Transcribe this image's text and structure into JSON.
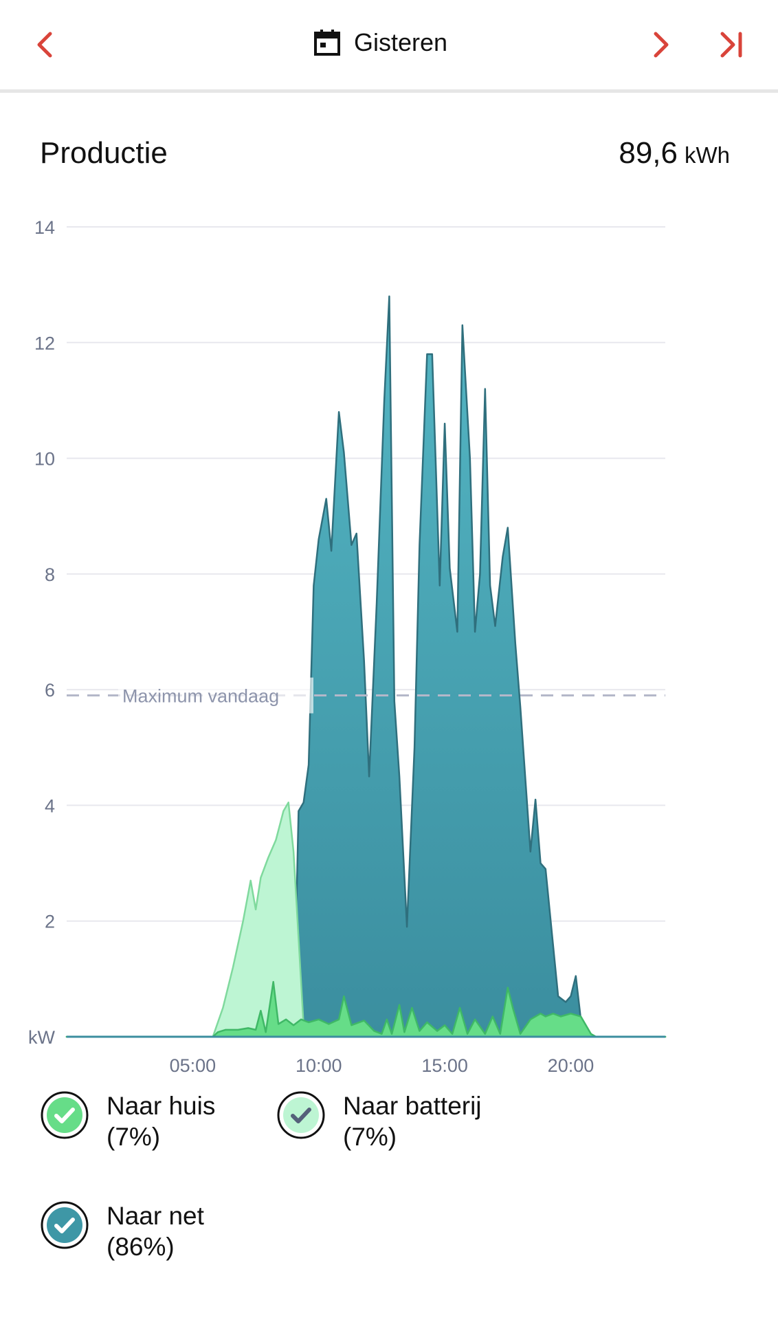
{
  "header": {
    "date_label": "Gisteren",
    "prev_icon": "chevron-left-icon",
    "next_icon": "chevron-right-icon",
    "last_icon": "skip-to-end-icon",
    "calendar_icon": "calendar-icon",
    "accent_color": "#d9443a"
  },
  "production": {
    "title": "Productie",
    "total_value": "89,6",
    "total_unit": "kWh"
  },
  "chart_data": {
    "type": "area",
    "unit_label": "kW",
    "y_ticks": [
      "14",
      "12",
      "10",
      "8",
      "6",
      "4",
      "2"
    ],
    "ylim": [
      0,
      14
    ],
    "x_ticks": [
      "05:00",
      "10:00",
      "15:00",
      "20:00"
    ],
    "x_tick_hours": [
      5,
      10,
      15,
      20
    ],
    "xlim": [
      0,
      23.75
    ],
    "grid": true,
    "reference_line": {
      "label": "Maximum vandaag",
      "value": 5.9
    },
    "series": [
      {
        "name": "Naar net",
        "color": "#3e97a6",
        "points": [
          [
            0,
            0
          ],
          [
            9.0,
            0
          ],
          [
            9.2,
            3.9
          ],
          [
            9.4,
            4.05
          ],
          [
            9.6,
            4.7
          ],
          [
            9.8,
            7.8
          ],
          [
            10.0,
            8.6
          ],
          [
            10.3,
            9.3
          ],
          [
            10.5,
            8.4
          ],
          [
            10.8,
            10.8
          ],
          [
            11.0,
            10.1
          ],
          [
            11.3,
            8.5
          ],
          [
            11.5,
            8.7
          ],
          [
            11.8,
            6.5
          ],
          [
            12.0,
            4.5
          ],
          [
            12.3,
            7.5
          ],
          [
            12.6,
            11.0
          ],
          [
            12.8,
            12.8
          ],
          [
            13.0,
            5.8
          ],
          [
            13.2,
            4.5
          ],
          [
            13.5,
            1.9
          ],
          [
            13.8,
            5.0
          ],
          [
            14.0,
            8.5
          ],
          [
            14.3,
            11.8
          ],
          [
            14.5,
            11.8
          ],
          [
            14.8,
            7.8
          ],
          [
            15.0,
            10.6
          ],
          [
            15.2,
            8.1
          ],
          [
            15.5,
            7.0
          ],
          [
            15.7,
            12.3
          ],
          [
            16.0,
            10.0
          ],
          [
            16.2,
            7.0
          ],
          [
            16.4,
            8.0
          ],
          [
            16.6,
            11.2
          ],
          [
            16.8,
            7.8
          ],
          [
            17.0,
            7.1
          ],
          [
            17.3,
            8.3
          ],
          [
            17.5,
            8.8
          ],
          [
            17.8,
            6.8
          ],
          [
            18.0,
            5.7
          ],
          [
            18.4,
            3.2
          ],
          [
            18.6,
            4.1
          ],
          [
            18.8,
            3.0
          ],
          [
            19.0,
            2.9
          ],
          [
            19.5,
            0.7
          ],
          [
            19.8,
            0.6
          ],
          [
            20.0,
            0.7
          ],
          [
            20.2,
            1.05
          ],
          [
            20.4,
            0.3
          ],
          [
            20.6,
            0
          ],
          [
            23.75,
            0
          ]
        ]
      },
      {
        "name": "Naar batterij",
        "color": "#bdf5d3",
        "points": [
          [
            0,
            0
          ],
          [
            5.8,
            0
          ],
          [
            6.2,
            0.5
          ],
          [
            6.6,
            1.2
          ],
          [
            7.0,
            2.0
          ],
          [
            7.3,
            2.7
          ],
          [
            7.5,
            2.2
          ],
          [
            7.7,
            2.75
          ],
          [
            8.0,
            3.1
          ],
          [
            8.3,
            3.4
          ],
          [
            8.6,
            3.9
          ],
          [
            8.8,
            4.05
          ],
          [
            9.0,
            3.2
          ],
          [
            9.4,
            0.2
          ],
          [
            9.6,
            0
          ],
          [
            23.75,
            0
          ]
        ]
      },
      {
        "name": "Naar huis",
        "color": "#66dd88",
        "points": [
          [
            0,
            0
          ],
          [
            5.8,
            0
          ],
          [
            6.0,
            0.08
          ],
          [
            6.3,
            0.12
          ],
          [
            6.8,
            0.12
          ],
          [
            7.2,
            0.15
          ],
          [
            7.5,
            0.12
          ],
          [
            7.7,
            0.45
          ],
          [
            7.9,
            0.08
          ],
          [
            8.2,
            0.95
          ],
          [
            8.4,
            0.22
          ],
          [
            8.7,
            0.3
          ],
          [
            9.0,
            0.2
          ],
          [
            9.3,
            0.3
          ],
          [
            9.6,
            0.25
          ],
          [
            10.0,
            0.3
          ],
          [
            10.4,
            0.22
          ],
          [
            10.8,
            0.3
          ],
          [
            11.0,
            0.7
          ],
          [
            11.3,
            0.2
          ],
          [
            11.8,
            0.28
          ],
          [
            12.2,
            0.1
          ],
          [
            12.5,
            0.05
          ],
          [
            12.7,
            0.3
          ],
          [
            12.9,
            0.05
          ],
          [
            13.2,
            0.55
          ],
          [
            13.4,
            0.08
          ],
          [
            13.7,
            0.5
          ],
          [
            14.0,
            0.1
          ],
          [
            14.3,
            0.25
          ],
          [
            14.7,
            0.1
          ],
          [
            15.0,
            0.2
          ],
          [
            15.3,
            0.05
          ],
          [
            15.6,
            0.5
          ],
          [
            15.9,
            0.05
          ],
          [
            16.2,
            0.3
          ],
          [
            16.6,
            0.05
          ],
          [
            16.9,
            0.35
          ],
          [
            17.2,
            0.05
          ],
          [
            17.5,
            0.85
          ],
          [
            17.7,
            0.5
          ],
          [
            18.0,
            0.05
          ],
          [
            18.4,
            0.3
          ],
          [
            18.8,
            0.4
          ],
          [
            19.0,
            0.35
          ],
          [
            19.3,
            0.4
          ],
          [
            19.6,
            0.35
          ],
          [
            20.0,
            0.4
          ],
          [
            20.4,
            0.35
          ],
          [
            20.8,
            0.05
          ],
          [
            21.0,
            0
          ],
          [
            23.75,
            0
          ]
        ]
      }
    ]
  },
  "legend": [
    {
      "label": "Naar huis",
      "percent": "(7%)",
      "icon": "check-circle-icon",
      "fill": "#66dd88",
      "check_color": "#ffffff"
    },
    {
      "label": "Naar batterij",
      "percent": "(7%)",
      "icon": "check-circle-icon",
      "fill": "#bdf5d3",
      "check_color": "#55607a"
    },
    {
      "label": "Naar net",
      "percent": "(86%)",
      "icon": "check-circle-icon",
      "fill": "#3e97a6",
      "check_color": "#ffffff"
    }
  ]
}
